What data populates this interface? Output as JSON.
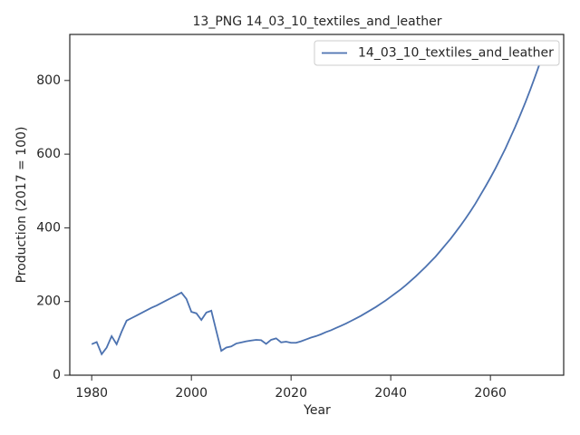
{
  "chart_data": {
    "type": "line",
    "title": "13_PNG 14_03_10_textiles_and_leather",
    "xlabel": "Year",
    "ylabel": "Production (2017 = 100)",
    "x": [
      1980,
      1981,
      1982,
      1983,
      1984,
      1985,
      1986,
      1987,
      1988,
      1989,
      1990,
      1991,
      1992,
      1993,
      1994,
      1995,
      1996,
      1997,
      1998,
      1999,
      2000,
      2001,
      2002,
      2003,
      2004,
      2005,
      2006,
      2007,
      2008,
      2009,
      2010,
      2011,
      2012,
      2013,
      2014,
      2015,
      2016,
      2017,
      2018,
      2019,
      2020,
      2021,
      2022,
      2023,
      2024,
      2025,
      2026,
      2027,
      2028,
      2029,
      2030,
      2031,
      2032,
      2033,
      2034,
      2035,
      2036,
      2037,
      2038,
      2039,
      2040,
      2041,
      2042,
      2043,
      2044,
      2045,
      2046,
      2047,
      2048,
      2049,
      2050,
      2051,
      2052,
      2053,
      2054,
      2055,
      2056,
      2057,
      2058,
      2059,
      2060,
      2061,
      2062,
      2063,
      2064,
      2065,
      2066,
      2067,
      2068,
      2069,
      2070
    ],
    "series": [
      {
        "name": "14_03_10_textiles_and_leather",
        "color": "#4c72b0",
        "values": [
          84,
          90,
          57,
          75,
          106,
          84,
          118,
          148,
          155,
          162,
          169,
          176,
          183,
          189,
          196,
          203,
          210,
          217,
          224,
          207,
          172,
          168,
          150,
          170,
          175,
          120,
          66,
          75,
          78,
          86,
          89,
          92,
          94,
          96,
          95,
          85,
          96,
          100,
          89,
          91,
          88,
          88,
          92,
          97,
          102,
          106,
          111,
          117,
          122,
          128,
          134,
          140,
          147,
          154,
          161,
          169,
          177,
          185,
          194,
          203,
          213,
          223,
          233,
          244,
          256,
          268,
          281,
          294,
          308,
          322,
          338,
          354,
          370,
          388,
          406,
          425,
          445,
          466,
          489,
          512,
          536,
          561,
          588,
          615,
          645,
          675,
          707,
          740,
          775,
          812,
          850
        ]
      }
    ],
    "xlim": [
      1975.6,
      2074.7
    ],
    "ylim": [
      0,
      925
    ],
    "xticks": [
      1980,
      2000,
      2020,
      2040,
      2060
    ],
    "yticks": [
      0,
      200,
      400,
      600,
      800
    ],
    "legend": "upper right"
  }
}
